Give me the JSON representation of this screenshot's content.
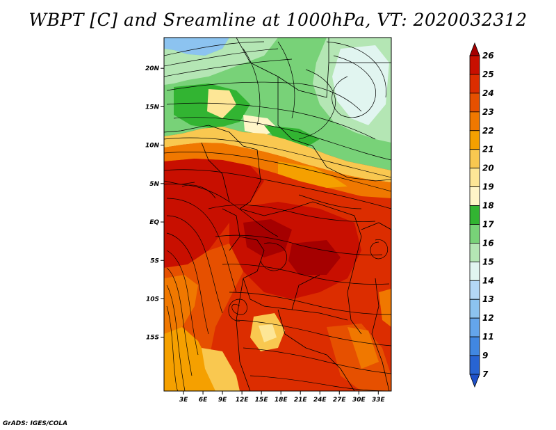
{
  "title": "WBPT [C] and Sreamline at 1000hPa, VT: 2020032312",
  "footer": "GrADS: IGES/COLA",
  "map": {
    "lon_range": [
      0,
      35
    ],
    "lat_range": [
      -22,
      24
    ],
    "x_ticks": [
      {
        "value": 3,
        "label": "3E"
      },
      {
        "value": 6,
        "label": "6E"
      },
      {
        "value": 9,
        "label": "9E"
      },
      {
        "value": 12,
        "label": "12E"
      },
      {
        "value": 15,
        "label": "15E"
      },
      {
        "value": 18,
        "label": "18E"
      },
      {
        "value": 21,
        "label": "21E"
      },
      {
        "value": 24,
        "label": "24E"
      },
      {
        "value": 27,
        "label": "27E"
      },
      {
        "value": 30,
        "label": "30E"
      },
      {
        "value": 33,
        "label": "33E"
      }
    ],
    "y_ticks": [
      {
        "value": 20,
        "label": "20N"
      },
      {
        "value": 15,
        "label": "15N"
      },
      {
        "value": 10,
        "label": "10N"
      },
      {
        "value": 5,
        "label": "5N"
      },
      {
        "value": 0,
        "label": "EQ"
      },
      {
        "value": -5,
        "label": "5S"
      },
      {
        "value": -10,
        "label": "10S"
      },
      {
        "value": -15,
        "label": "15S"
      }
    ]
  },
  "colorbar": {
    "levels": [
      {
        "label": "26",
        "color": "#a50000"
      },
      {
        "label": "25",
        "color": "#c80f00"
      },
      {
        "label": "24",
        "color": "#dc2d00"
      },
      {
        "label": "23",
        "color": "#e65000"
      },
      {
        "label": "22",
        "color": "#f07800"
      },
      {
        "label": "21",
        "color": "#f5a000"
      },
      {
        "label": "20",
        "color": "#f9c850"
      },
      {
        "label": "19",
        "color": "#fde696"
      },
      {
        "label": "18",
        "color": "#fff5c8"
      },
      {
        "label": "17",
        "color": "#32b432"
      },
      {
        "label": "16",
        "color": "#78d278"
      },
      {
        "label": "15",
        "color": "#b4e6b4"
      },
      {
        "label": "14",
        "color": "#e1f5f0"
      },
      {
        "label": "13",
        "color": "#b4d7f5"
      },
      {
        "label": "12",
        "color": "#8cc3f0"
      },
      {
        "label": "11",
        "color": "#64a5eb"
      },
      {
        "label": "9",
        "color": "#4187e1"
      },
      {
        "label": "7",
        "color": "#2864d2"
      }
    ],
    "bottom_color": "#1e50c8"
  }
}
